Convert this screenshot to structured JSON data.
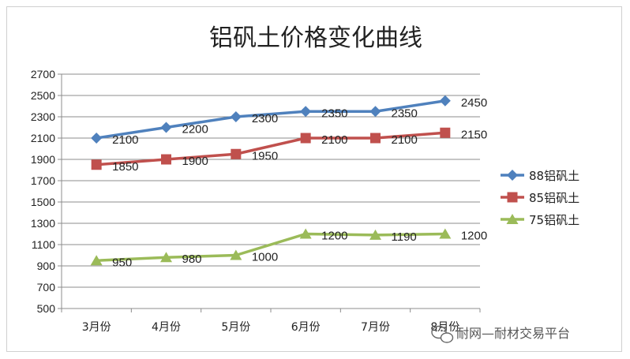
{
  "chart_data": {
    "type": "line",
    "title": "铝矾土价格变化曲线",
    "categories": [
      "3月份",
      "4月份",
      "5月份",
      "6月份",
      "7月份",
      "8月份"
    ],
    "ylim": [
      500,
      2700
    ],
    "yticks": [
      500,
      700,
      900,
      1100,
      1300,
      1500,
      1700,
      1900,
      2100,
      2300,
      2500,
      2700
    ],
    "grid": true,
    "legend_position": "right",
    "series": [
      {
        "name": "88铝矾土",
        "values": [
          2100,
          2200,
          2300,
          2350,
          2350,
          2450
        ],
        "color": "#4f81bd",
        "marker": "diamond"
      },
      {
        "name": "85铝矾土",
        "values": [
          1850,
          1900,
          1950,
          2100,
          2100,
          2150
        ],
        "color": "#c0504d",
        "marker": "square"
      },
      {
        "name": "75铝矾土",
        "values": [
          950,
          980,
          1000,
          1200,
          1190,
          1200
        ],
        "color": "#9bbb59",
        "marker": "triangle"
      }
    ]
  },
  "watermark": {
    "text": "耐网—耐材交易平台",
    "icon": "wechat-icon"
  }
}
